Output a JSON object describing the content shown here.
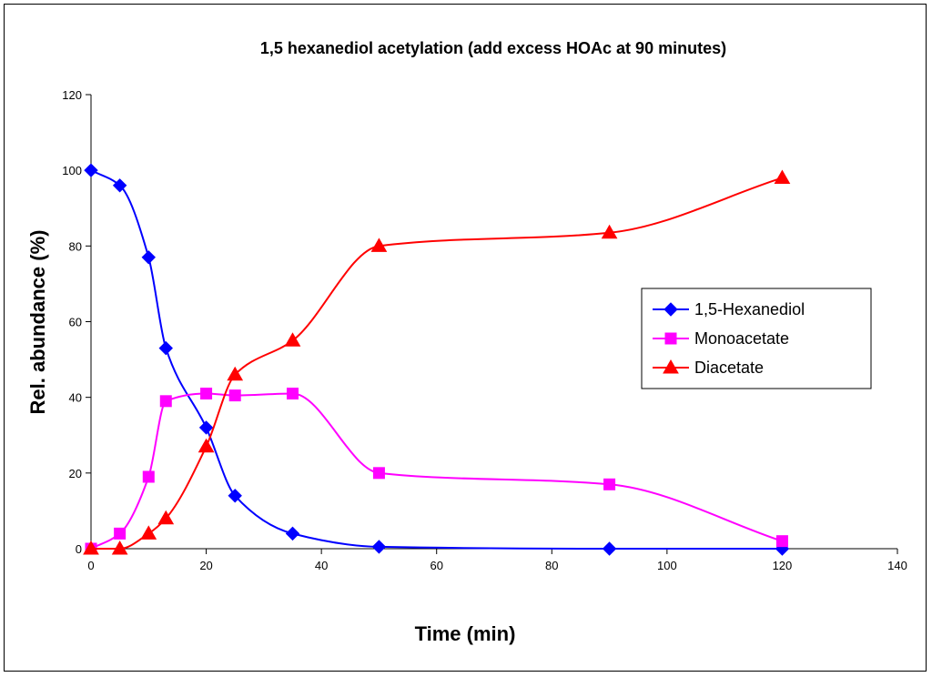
{
  "chart_data": {
    "type": "line",
    "title": "1,5 hexanediol acetylation (add excess HOAc at 90 minutes)",
    "xlabel": "Time (min)",
    "ylabel": "Rel. abundance (%)",
    "xlim": [
      0,
      140
    ],
    "ylim": [
      0,
      120
    ],
    "xticks": [
      0,
      20,
      40,
      60,
      80,
      100,
      120,
      140
    ],
    "yticks": [
      0,
      20,
      40,
      60,
      80,
      100,
      120
    ],
    "grid": false,
    "smooth": true,
    "legend_position": "right",
    "series": [
      {
        "name": "1,5-Hexanediol",
        "color": "#0000FF",
        "marker": "diamond",
        "x": [
          0,
          5,
          10,
          13,
          20,
          25,
          35,
          50,
          90,
          120
        ],
        "y": [
          100,
          96,
          77,
          53,
          32,
          14,
          4,
          0.5,
          0,
          0
        ]
      },
      {
        "name": "Monoacetate",
        "color": "#FF00FF",
        "marker": "square",
        "x": [
          0,
          5,
          10,
          13,
          20,
          25,
          35,
          50,
          90,
          120
        ],
        "y": [
          0,
          4,
          19,
          39,
          41,
          40.5,
          41,
          20,
          17,
          2
        ]
      },
      {
        "name": "Diacetate",
        "color": "#FF0000",
        "marker": "triangle",
        "x": [
          0,
          5,
          10,
          13,
          20,
          25,
          35,
          50,
          90,
          120
        ],
        "y": [
          0,
          0,
          4,
          8,
          27,
          46,
          55,
          80,
          83.5,
          98
        ]
      }
    ]
  }
}
